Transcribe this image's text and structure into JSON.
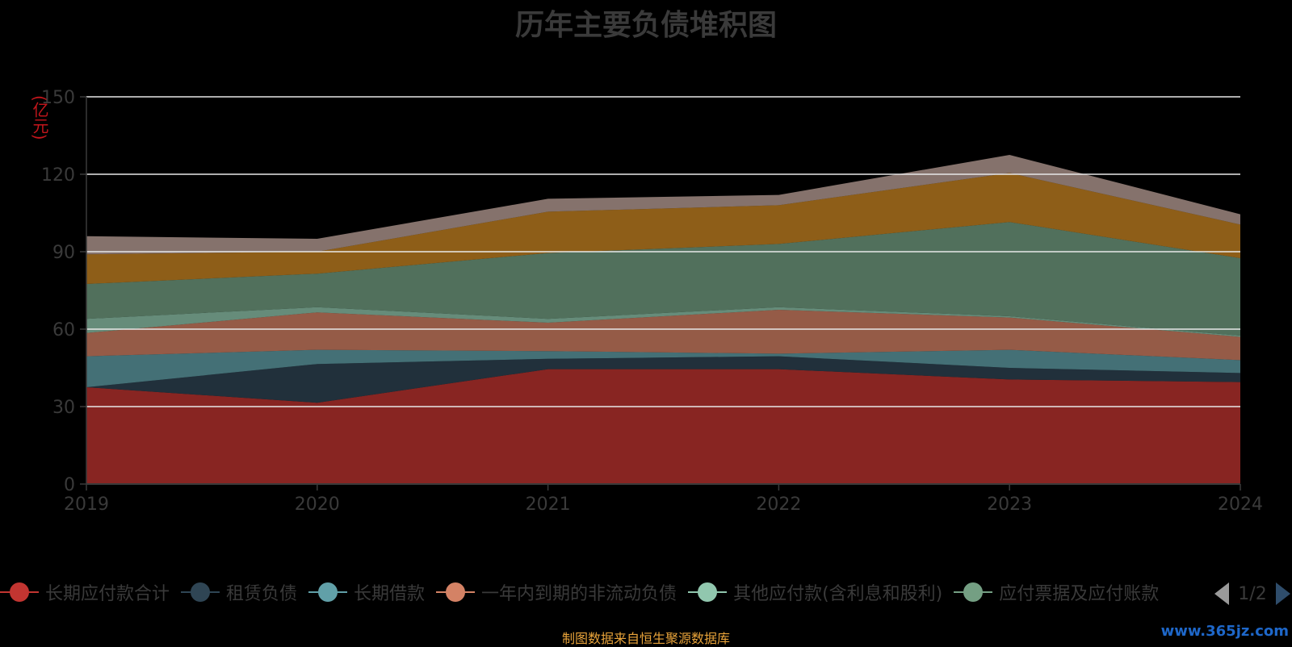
{
  "title": "历年主要负债堆积图",
  "source_note": "制图数据来自恒生聚源数据库",
  "watermark": "www.365jz.com",
  "pager": {
    "text": "1/2"
  },
  "chart_data": {
    "type": "area",
    "stacked": true,
    "title": "历年主要负债堆积图",
    "ylabel": "(亿元)",
    "xlabel": "",
    "ylim": [
      0,
      150
    ],
    "yticks": [
      0,
      30,
      60,
      90,
      120,
      150
    ],
    "grid": true,
    "legend_position": "bottom",
    "x": [
      "2019",
      "2020",
      "2021",
      "2022",
      "2023",
      "2024"
    ],
    "series": [
      {
        "name": "长期应付款合计",
        "color": "#c23531",
        "values": [
          37.5,
          31.5,
          44.5,
          44.5,
          40.5,
          39.5
        ]
      },
      {
        "name": "租赁负债",
        "color": "#2f4554",
        "values": [
          0,
          15,
          4,
          5,
          4.5,
          3.5
        ]
      },
      {
        "name": "长期借款",
        "color": "#61a0a8",
        "values": [
          12,
          5.5,
          3,
          1,
          7,
          5
        ]
      },
      {
        "name": "一年内到期的非流动负债",
        "color": "#d48265",
        "values": [
          9,
          14.5,
          11,
          17,
          12.5,
          9
        ]
      },
      {
        "name": "其他应付款(含利息和股利)",
        "color": "#91c7ae",
        "values": [
          5.5,
          2,
          1.5,
          1,
          0.5,
          0.5
        ]
      },
      {
        "name": "应付票据及应付账款",
        "color": "#749f83",
        "values": [
          13.5,
          13,
          25.5,
          24.5,
          36.5,
          30
        ]
      },
      {
        "name": "",
        "color": "#ca8622",
        "values": [
          11.5,
          8.5,
          16,
          15,
          19,
          13
        ]
      },
      {
        "name": "",
        "color": "#bda29a",
        "values": [
          7,
          5,
          5,
          4,
          7,
          4
        ]
      }
    ]
  }
}
